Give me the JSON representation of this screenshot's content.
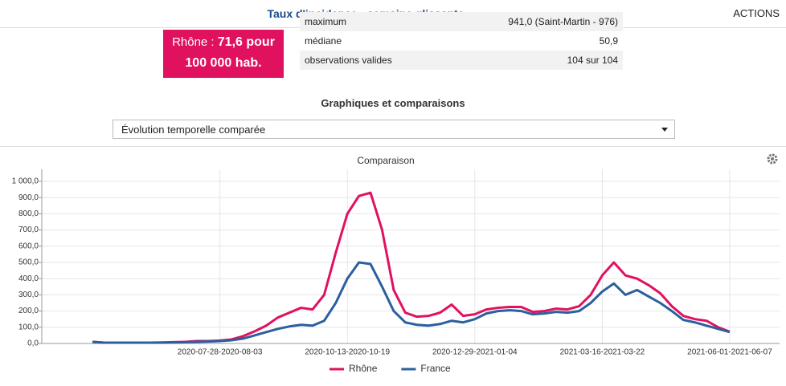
{
  "header": {
    "title": "Taux d'incidence - semaine glissante",
    "actions": "ACTIONS"
  },
  "indicator": {
    "label": "Rhône :",
    "value": "71,6 pour 100 000 hab."
  },
  "stats": {
    "rows": [
      [
        "maximum",
        "941,0 (Saint-Martin - 976)"
      ],
      [
        "médiane",
        "50,9"
      ],
      [
        "observations valides",
        "104 sur 104"
      ]
    ]
  },
  "section_title": "Graphiques et comparaisons",
  "select": "Évolution temporelle comparée",
  "chart_data": {
    "type": "line",
    "title": "Comparaison",
    "categories": [
      null,
      null,
      null,
      null,
      null,
      null,
      null,
      null,
      null,
      null,
      null,
      "2020-07-28-2020-08-03",
      null,
      null,
      null,
      null,
      null,
      null,
      null,
      null,
      null,
      null,
      "2020-10-13-2020-10-19",
      null,
      null,
      null,
      null,
      null,
      null,
      null,
      null,
      null,
      null,
      "2020-12-29-2021-01-04",
      null,
      null,
      null,
      null,
      null,
      null,
      null,
      null,
      null,
      null,
      "2021-03-16-2021-03-22",
      null,
      null,
      null,
      null,
      null,
      null,
      null,
      null,
      null,
      null,
      "2021-06-01-2021-06-07"
    ],
    "series": [
      {
        "name": "Rhône",
        "color": "#e0115f",
        "values": [
          10,
          5,
          5,
          5,
          5,
          5,
          6,
          8,
          10,
          15,
          15,
          18,
          25,
          45,
          75,
          110,
          160,
          190,
          220,
          210,
          300,
          560,
          800,
          910,
          930,
          700,
          330,
          190,
          165,
          170,
          190,
          240,
          170,
          180,
          210,
          220,
          225,
          225,
          195,
          200,
          215,
          210,
          230,
          300,
          420,
          500,
          420,
          400,
          360,
          310,
          230,
          170,
          150,
          140,
          100,
          72
        ]
      },
      {
        "name": "France",
        "color": "#2c5f9e",
        "values": [
          10,
          5,
          5,
          5,
          5,
          5,
          5,
          6,
          8,
          10,
          12,
          15,
          20,
          30,
          50,
          70,
          90,
          105,
          115,
          110,
          140,
          250,
          400,
          500,
          490,
          350,
          200,
          130,
          115,
          110,
          120,
          140,
          130,
          150,
          185,
          200,
          205,
          200,
          180,
          185,
          195,
          190,
          200,
          250,
          320,
          370,
          300,
          330,
          290,
          250,
          200,
          145,
          130,
          110,
          90,
          70
        ]
      }
    ],
    "ylim": [
      0,
      1000
    ],
    "yticks": [
      {
        "value": 0,
        "label": "0,0"
      },
      {
        "value": 100,
        "label": "100,0"
      },
      {
        "value": 200,
        "label": "200,0"
      },
      {
        "value": 300,
        "label": "300,0"
      },
      {
        "value": 400,
        "label": "400,0"
      },
      {
        "value": 500,
        "label": "500,0"
      },
      {
        "value": 600,
        "label": "600,0"
      },
      {
        "value": 700,
        "label": "700,0"
      },
      {
        "value": 800,
        "label": "800,0"
      },
      {
        "value": 900,
        "label": "900,0"
      },
      {
        "value": 1000,
        "label": "1 000,0"
      }
    ],
    "grid": true
  }
}
